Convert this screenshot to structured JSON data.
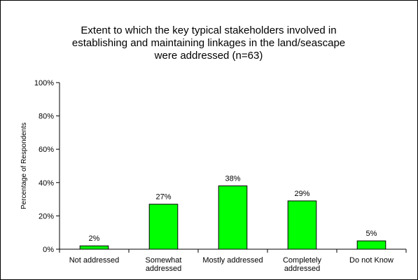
{
  "chart_data": {
    "type": "bar",
    "title": [
      "Extent to which the key typical stakeholders involved in",
      "establishing and maintaining linkages in the land/seascape",
      "were addressed (n=63)"
    ],
    "ylabel": "Percentage of Respondents",
    "xlabel": "",
    "categories": [
      [
        "Not addressed"
      ],
      [
        "Somewhat",
        "addressed"
      ],
      [
        "Mostly addressed"
      ],
      [
        "Completely",
        "addressed"
      ],
      [
        "Do not Know"
      ]
    ],
    "values": [
      2,
      27,
      38,
      29,
      5
    ],
    "data_labels": [
      "2%",
      "27%",
      "38%",
      "29%",
      "5%"
    ],
    "ylim": [
      0,
      100
    ],
    "yticks": [
      0,
      20,
      40,
      60,
      80,
      100
    ],
    "ytick_labels": [
      "0%",
      "20%",
      "40%",
      "60%",
      "80%",
      "100%"
    ],
    "grid": false,
    "legend": "none",
    "colors": {
      "bar_fill": "#00ff00",
      "bar_stroke": "#000000",
      "axis": "#000000",
      "text": "#000000",
      "frame": "#000000",
      "background": "#ffffff"
    }
  }
}
